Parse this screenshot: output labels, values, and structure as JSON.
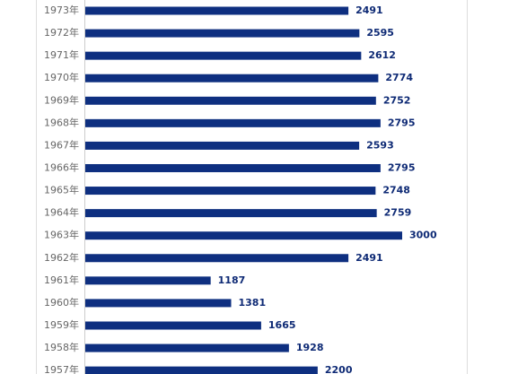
{
  "chart_data": {
    "type": "bar",
    "orientation": "horizontal",
    "color": "#0e2f80",
    "categories": [
      "1973年",
      "1972年",
      "1971年",
      "1970年",
      "1969年",
      "1968年",
      "1967年",
      "1966年",
      "1965年",
      "1964年",
      "1963年",
      "1962年",
      "1961年",
      "1960年",
      "1959年",
      "1958年",
      "1957年"
    ],
    "values": [
      2491,
      2595,
      2612,
      2774,
      2752,
      2795,
      2593,
      2795,
      2748,
      2759,
      3000,
      2491,
      1187,
      1381,
      1665,
      1928,
      2200
    ]
  }
}
